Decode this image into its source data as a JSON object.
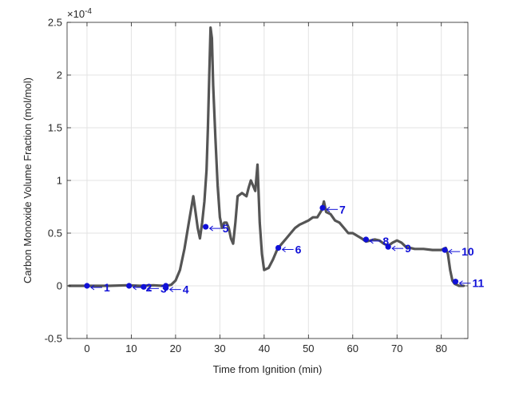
{
  "chart_data": {
    "type": "line",
    "xlabel": "Time from Ignition (min)",
    "ylabel": "Carbon Monoxide Volume Fraction (mol/mol)",
    "y_exponent_label": "×10",
    "y_exponent_value": "-4",
    "xlim": [
      -4.5,
      86
    ],
    "ylim": [
      -0.5,
      2.5
    ],
    "grid": true,
    "xticks": [
      0,
      10,
      20,
      30,
      40,
      50,
      60,
      70,
      80
    ],
    "xtick_labels": [
      "0",
      "10",
      "20",
      "30",
      "40",
      "50",
      "60",
      "70",
      "80"
    ],
    "yticks": [
      -0.5,
      0,
      0.5,
      1,
      1.5,
      2,
      2.5
    ],
    "ytick_labels": [
      "-0.5",
      "0",
      "0.5",
      "1",
      "1.5",
      "2",
      "2.5"
    ],
    "series_color": "#555555",
    "marker_color": "#1010d8",
    "series": [
      {
        "x": [
          -4,
          0,
          5,
          9,
          12,
          15,
          17,
          18,
          19,
          20,
          21,
          22,
          23,
          24,
          24.5,
          25,
          25.5,
          26,
          26.5,
          27,
          27.3,
          27.6,
          27.9,
          28.2,
          28.5,
          29,
          29.5,
          30,
          30.5,
          31,
          31.5,
          32,
          32.5,
          33,
          33.5,
          34,
          35,
          36,
          36.5,
          37,
          37.5,
          38,
          38.5,
          39,
          39.5,
          40,
          41,
          42,
          43,
          44,
          45,
          46,
          47,
          48,
          49,
          50,
          51,
          52,
          53,
          53.5,
          54,
          55,
          56,
          57,
          58,
          59,
          60,
          62,
          63,
          64,
          65,
          66,
          67,
          68,
          69,
          70,
          71,
          72,
          74,
          76,
          78,
          80,
          81,
          81.5,
          82,
          82.5,
          83,
          84,
          85
        ],
        "y": [
          0.0,
          0.0,
          0.0,
          0.005,
          0.0,
          0.005,
          0.0,
          0.0,
          0.01,
          0.05,
          0.15,
          0.35,
          0.6,
          0.85,
          0.7,
          0.55,
          0.45,
          0.6,
          0.8,
          1.1,
          1.5,
          2.0,
          2.45,
          2.35,
          1.9,
          1.4,
          0.95,
          0.65,
          0.55,
          0.6,
          0.6,
          0.55,
          0.45,
          0.4,
          0.6,
          0.85,
          0.88,
          0.85,
          0.93,
          1.0,
          0.95,
          0.9,
          1.15,
          0.6,
          0.3,
          0.15,
          0.17,
          0.25,
          0.35,
          0.4,
          0.45,
          0.5,
          0.55,
          0.58,
          0.6,
          0.62,
          0.65,
          0.65,
          0.72,
          0.8,
          0.7,
          0.68,
          0.62,
          0.6,
          0.55,
          0.5,
          0.5,
          0.45,
          0.42,
          0.43,
          0.44,
          0.43,
          0.4,
          0.38,
          0.41,
          0.43,
          0.41,
          0.37,
          0.35,
          0.35,
          0.34,
          0.34,
          0.36,
          0.3,
          0.15,
          0.05,
          0.02,
          0.0,
          0.0
        ]
      }
    ],
    "annotations": [
      {
        "label": "1",
        "x": 0,
        "y": 0
      },
      {
        "label": "2",
        "x": 9.5,
        "y": 0.0
      },
      {
        "label": "3",
        "x": 12.8,
        "y": -0.01
      },
      {
        "label": "4",
        "x": 17.8,
        "y": -0.02
      },
      {
        "label": "5",
        "x": 26.8,
        "y": 0.56
      },
      {
        "label": "6",
        "x": 43.2,
        "y": 0.36
      },
      {
        "label": "7",
        "x": 53.2,
        "y": 0.74
      },
      {
        "label": "8",
        "x": 63.0,
        "y": 0.44
      },
      {
        "label": "9",
        "x": 68.0,
        "y": 0.37
      },
      {
        "label": "10",
        "x": 80.8,
        "y": 0.34
      },
      {
        "label": "11",
        "x": 83.2,
        "y": 0.04
      }
    ],
    "extra_markers": [
      {
        "x": 17.8,
        "y": 0.0
      }
    ]
  }
}
